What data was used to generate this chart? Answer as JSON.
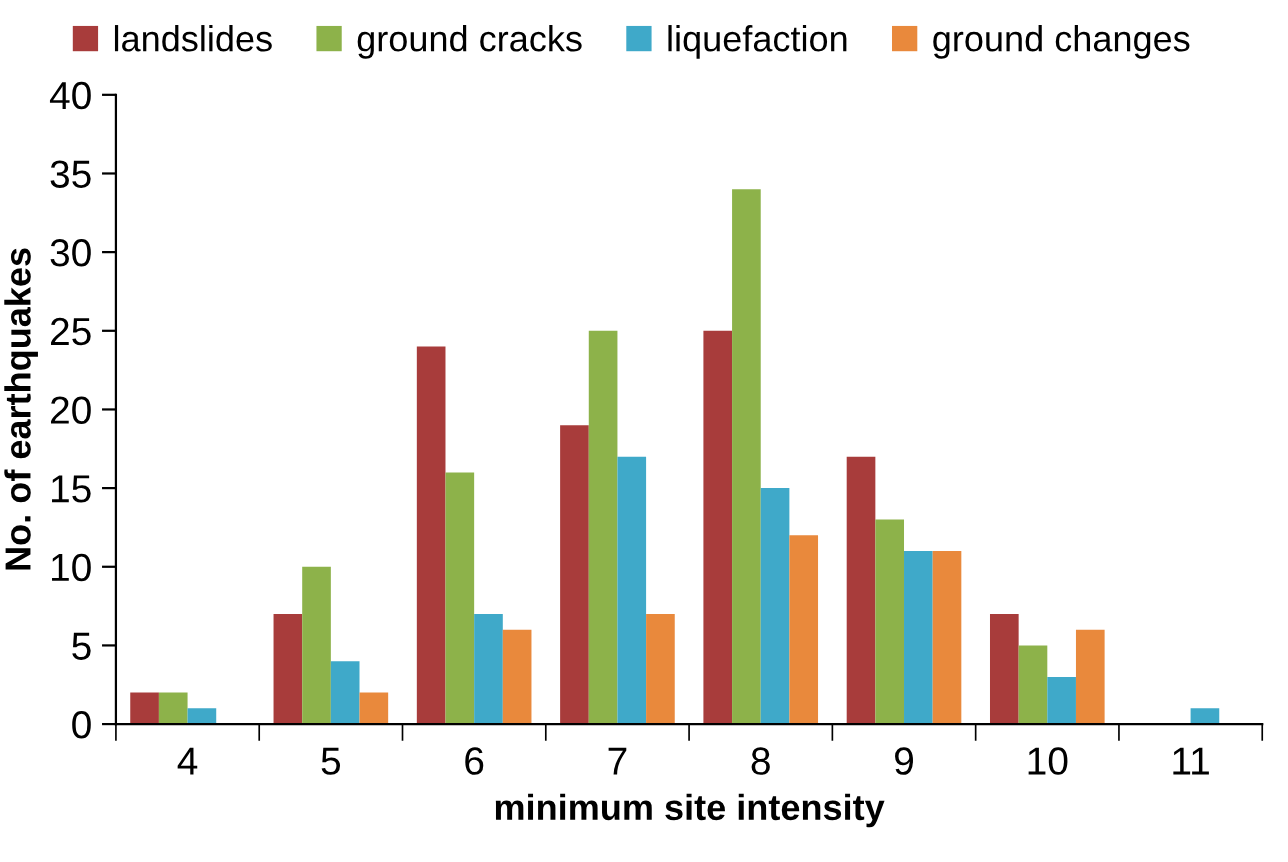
{
  "chart_data": {
    "type": "bar",
    "xlabel": "minimum site intensity",
    "ylabel": "No. of earthquakes",
    "categories": [
      "4",
      "5",
      "6",
      "7",
      "8",
      "9",
      "10",
      "11"
    ],
    "series": [
      {
        "name": "landslides",
        "color": "#a83c3b",
        "values": [
          2,
          7,
          24,
          19,
          25,
          17,
          7,
          0
        ]
      },
      {
        "name": "ground cracks",
        "color": "#8db24a",
        "values": [
          2,
          10,
          16,
          25,
          34,
          13,
          5,
          0
        ]
      },
      {
        "name": "liquefaction",
        "color": "#3fa9c9",
        "values": [
          1,
          4,
          7,
          17,
          15,
          11,
          3,
          1
        ]
      },
      {
        "name": "ground changes",
        "color": "#e9893c",
        "values": [
          0,
          2,
          6,
          7,
          12,
          11,
          6,
          0
        ]
      }
    ],
    "ylim": [
      0,
      40
    ],
    "yticks": [
      0,
      5,
      10,
      15,
      20,
      25,
      30,
      35,
      40
    ],
    "grid": false,
    "legend": "top"
  }
}
